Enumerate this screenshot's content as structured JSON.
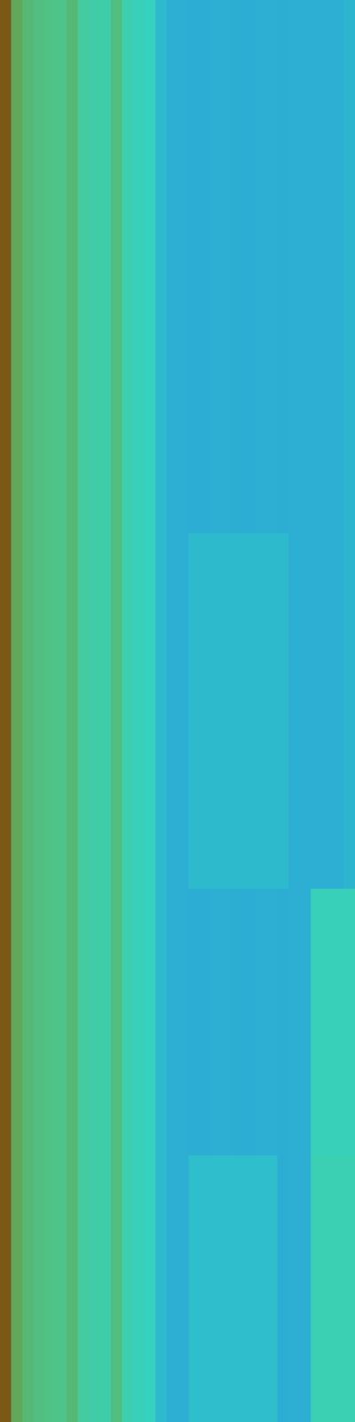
{
  "chart_data": {
    "type": "heatmap",
    "tick_labels": false,
    "cells": [
      [
        0.9,
        0.65,
        0.6,
        0.58,
        0.57,
        0.56,
        0.6,
        0.5,
        0.48,
        0.47,
        0.58,
        0.45,
        0.42,
        0.4,
        0.32,
        0.28,
        0.28,
        0.27,
        0.27,
        0.28,
        0.28,
        0.27,
        0.27,
        0.28,
        0.28,
        0.27,
        0.28,
        0.28,
        0.28,
        0.28,
        0.28,
        0.3
      ],
      [
        0.9,
        0.65,
        0.6,
        0.58,
        0.57,
        0.56,
        0.6,
        0.5,
        0.48,
        0.47,
        0.58,
        0.45,
        0.42,
        0.4,
        0.32,
        0.28,
        0.28,
        0.27,
        0.27,
        0.28,
        0.28,
        0.27,
        0.27,
        0.28,
        0.28,
        0.27,
        0.28,
        0.28,
        0.28,
        0.28,
        0.28,
        0.3
      ],
      [
        0.9,
        0.65,
        0.6,
        0.58,
        0.57,
        0.56,
        0.6,
        0.5,
        0.48,
        0.47,
        0.58,
        0.45,
        0.42,
        0.4,
        0.32,
        0.28,
        0.28,
        0.27,
        0.27,
        0.28,
        0.28,
        0.27,
        0.27,
        0.28,
        0.28,
        0.27,
        0.28,
        0.28,
        0.28,
        0.28,
        0.28,
        0.3
      ],
      [
        0.9,
        0.65,
        0.6,
        0.58,
        0.57,
        0.56,
        0.6,
        0.5,
        0.48,
        0.47,
        0.58,
        0.45,
        0.42,
        0.4,
        0.32,
        0.28,
        0.28,
        0.27,
        0.27,
        0.28,
        0.28,
        0.27,
        0.27,
        0.28,
        0.28,
        0.27,
        0.28,
        0.28,
        0.28,
        0.28,
        0.28,
        0.3
      ],
      [
        0.9,
        0.65,
        0.6,
        0.58,
        0.57,
        0.56,
        0.6,
        0.5,
        0.48,
        0.47,
        0.58,
        0.45,
        0.42,
        0.4,
        0.32,
        0.28,
        0.28,
        0.27,
        0.27,
        0.28,
        0.28,
        0.27,
        0.27,
        0.28,
        0.28,
        0.27,
        0.28,
        0.28,
        0.28,
        0.28,
        0.28,
        0.3
      ],
      [
        0.9,
        0.65,
        0.6,
        0.58,
        0.57,
        0.56,
        0.6,
        0.5,
        0.48,
        0.47,
        0.58,
        0.45,
        0.42,
        0.4,
        0.32,
        0.28,
        0.28,
        0.27,
        0.27,
        0.28,
        0.28,
        0.27,
        0.27,
        0.28,
        0.28,
        0.27,
        0.28,
        0.28,
        0.28,
        0.28,
        0.28,
        0.3
      ],
      [
        0.9,
        0.65,
        0.6,
        0.58,
        0.57,
        0.56,
        0.6,
        0.5,
        0.48,
        0.47,
        0.58,
        0.45,
        0.42,
        0.4,
        0.32,
        0.28,
        0.28,
        0.32,
        0.32,
        0.32,
        0.32,
        0.32,
        0.32,
        0.32,
        0.32,
        0.32,
        0.28,
        0.28,
        0.28,
        0.28,
        0.28,
        0.3
      ],
      [
        0.9,
        0.65,
        0.6,
        0.58,
        0.57,
        0.56,
        0.6,
        0.5,
        0.48,
        0.47,
        0.58,
        0.45,
        0.42,
        0.4,
        0.32,
        0.28,
        0.28,
        0.32,
        0.32,
        0.32,
        0.32,
        0.32,
        0.32,
        0.32,
        0.32,
        0.32,
        0.28,
        0.28,
        0.28,
        0.28,
        0.28,
        0.3
      ],
      [
        0.9,
        0.65,
        0.6,
        0.58,
        0.57,
        0.56,
        0.6,
        0.5,
        0.48,
        0.47,
        0.58,
        0.45,
        0.42,
        0.4,
        0.32,
        0.28,
        0.28,
        0.32,
        0.32,
        0.32,
        0.32,
        0.32,
        0.32,
        0.32,
        0.32,
        0.32,
        0.28,
        0.28,
        0.28,
        0.28,
        0.28,
        0.3
      ],
      [
        0.9,
        0.65,
        0.6,
        0.58,
        0.57,
        0.56,
        0.6,
        0.5,
        0.48,
        0.47,
        0.58,
        0.45,
        0.42,
        0.4,
        0.32,
        0.28,
        0.28,
        0.32,
        0.32,
        0.32,
        0.32,
        0.32,
        0.32,
        0.32,
        0.32,
        0.32,
        0.28,
        0.28,
        0.28,
        0.28,
        0.28,
        0.3
      ],
      [
        0.9,
        0.65,
        0.6,
        0.58,
        0.57,
        0.56,
        0.6,
        0.5,
        0.48,
        0.47,
        0.58,
        0.45,
        0.42,
        0.4,
        0.32,
        0.28,
        0.28,
        0.27,
        0.27,
        0.28,
        0.28,
        0.27,
        0.27,
        0.28,
        0.28,
        0.27,
        0.28,
        0.28,
        0.42,
        0.42,
        0.42,
        0.42
      ],
      [
        0.9,
        0.65,
        0.6,
        0.58,
        0.57,
        0.56,
        0.6,
        0.5,
        0.48,
        0.47,
        0.58,
        0.45,
        0.42,
        0.4,
        0.32,
        0.28,
        0.28,
        0.27,
        0.27,
        0.28,
        0.28,
        0.27,
        0.27,
        0.28,
        0.28,
        0.27,
        0.28,
        0.28,
        0.42,
        0.42,
        0.42,
        0.42
      ],
      [
        0.9,
        0.65,
        0.6,
        0.58,
        0.57,
        0.56,
        0.6,
        0.5,
        0.48,
        0.47,
        0.58,
        0.45,
        0.42,
        0.4,
        0.32,
        0.28,
        0.28,
        0.27,
        0.27,
        0.28,
        0.28,
        0.27,
        0.27,
        0.28,
        0.28,
        0.27,
        0.28,
        0.28,
        0.42,
        0.42,
        0.42,
        0.42
      ],
      [
        0.9,
        0.65,
        0.6,
        0.58,
        0.57,
        0.56,
        0.6,
        0.5,
        0.48,
        0.47,
        0.58,
        0.45,
        0.42,
        0.4,
        0.32,
        0.28,
        0.28,
        0.33,
        0.33,
        0.33,
        0.33,
        0.33,
        0.33,
        0.33,
        0.33,
        0.27,
        0.28,
        0.28,
        0.44,
        0.44,
        0.44,
        0.44
      ],
      [
        0.9,
        0.65,
        0.6,
        0.58,
        0.57,
        0.56,
        0.6,
        0.5,
        0.48,
        0.47,
        0.58,
        0.45,
        0.42,
        0.4,
        0.32,
        0.28,
        0.28,
        0.33,
        0.33,
        0.33,
        0.33,
        0.33,
        0.33,
        0.33,
        0.33,
        0.27,
        0.28,
        0.28,
        0.44,
        0.44,
        0.44,
        0.44
      ],
      [
        0.9,
        0.65,
        0.6,
        0.58,
        0.57,
        0.56,
        0.6,
        0.5,
        0.48,
        0.47,
        0.58,
        0.45,
        0.42,
        0.4,
        0.32,
        0.28,
        0.28,
        0.33,
        0.33,
        0.33,
        0.33,
        0.33,
        0.33,
        0.33,
        0.33,
        0.27,
        0.28,
        0.28,
        0.44,
        0.44,
        0.44,
        0.44
      ]
    ]
  }
}
